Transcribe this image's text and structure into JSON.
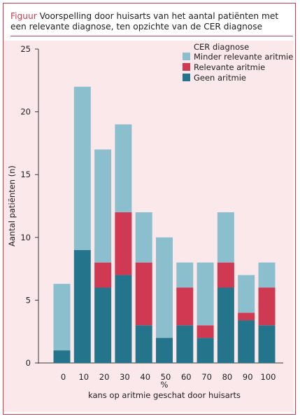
{
  "caption": {
    "lead": "Figuur",
    "text": "Voorspelling door huisarts van het aantal patiënten met een relevante diagnose, ten opzichte van de CER diagnose"
  },
  "colors": {
    "accent": "#cf3a52",
    "background": "#fbe8eb",
    "geen": "#24748b",
    "relevant": "#cf3a52",
    "minder": "#8bbfcd"
  },
  "chart_data": {
    "type": "bar",
    "stacked": true,
    "categories": [
      "0",
      "10",
      "20",
      "30",
      "40",
      "50",
      "60",
      "70",
      "80",
      "90",
      "100"
    ],
    "series": [
      {
        "name": "Geen aritmie",
        "color": "#24748b",
        "values": [
          1,
          9,
          6,
          7,
          3,
          2,
          3,
          2,
          6,
          3.4,
          3
        ]
      },
      {
        "name": "Relevante aritmie",
        "color": "#cf3a52",
        "values": [
          0,
          0,
          2,
          5,
          5,
          0,
          3,
          1,
          2,
          0.6,
          3
        ]
      },
      {
        "name": "Minder relevante aritmie",
        "color": "#8bbfcd",
        "values": [
          5.3,
          13,
          9,
          7,
          4,
          8,
          2,
          5,
          4,
          3,
          2
        ]
      }
    ],
    "legend_title": "CER diagnose",
    "legend_order": [
      "Minder relevante aritmie",
      "Relevante aritmie",
      "Geen aritmie"
    ],
    "legend_position": "top-right",
    "ylabel": "Aantal patiënten (n)",
    "xlabel_unit": "%",
    "xlabel": "kans op aritmie geschat door huisarts",
    "ylim": [
      0,
      25
    ],
    "yticks": [
      0,
      5,
      10,
      15,
      20,
      25
    ],
    "grid": false
  }
}
